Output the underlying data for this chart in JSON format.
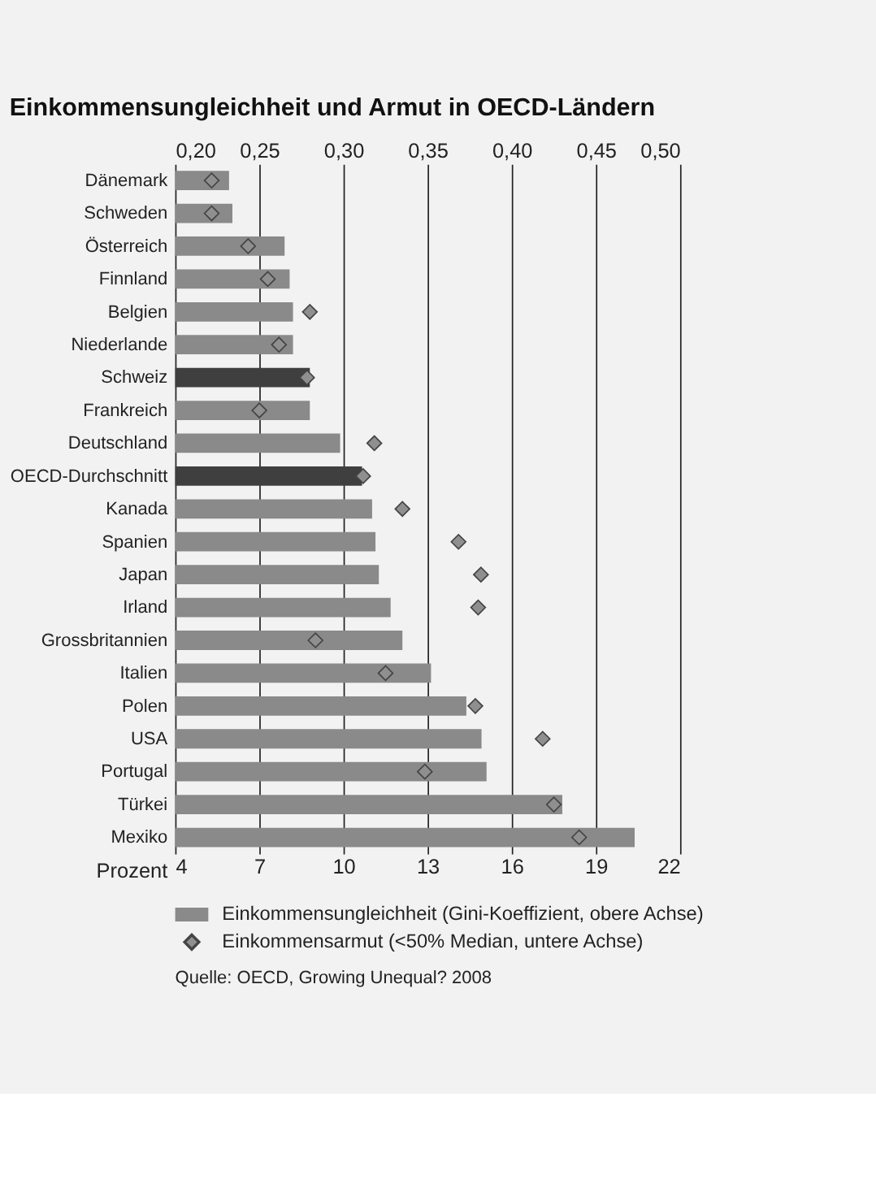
{
  "chart_data": {
    "type": "bar",
    "orientation": "horizontal",
    "title": "Einkommensungleichheit und Armut in OECD-Ländern",
    "xlabel": "Prozent",
    "categories": [
      "Dänemark",
      "Schweden",
      "Österreich",
      "Finnland",
      "Belgien",
      "Niederlande",
      "Schweiz",
      "Frankreich",
      "Deutschland",
      "OECD-Durchschnitt",
      "Kanada",
      "Spanien",
      "Japan",
      "Irland",
      "Grossbritannien",
      "Italien",
      "Polen",
      "USA",
      "Portugal",
      "Türkei",
      "Mexiko"
    ],
    "series": [
      {
        "name": "Einkommensungleichheit (Gini-Koeffizient, obere Achse)",
        "axis": "x2",
        "colors": [
          "#8a8a8a",
          "#8a8a8a",
          "#8a8a8a",
          "#8a8a8a",
          "#8a8a8a",
          "#8a8a8a",
          "#3f3f3f",
          "#8a8a8a",
          "#8a8a8a",
          "#3f3f3f",
          "#8a8a8a",
          "#8a8a8a",
          "#8a8a8a",
          "#8a8a8a",
          "#8a8a8a",
          "#8a8a8a",
          "#8a8a8a",
          "#8a8a8a",
          "#8a8a8a",
          "#8a8a8a",
          "#8a8a8a"
        ],
        "values": [
          0.232,
          0.234,
          0.265,
          0.268,
          0.27,
          0.27,
          0.28,
          0.28,
          0.298,
          0.311,
          0.317,
          0.319,
          0.321,
          0.328,
          0.335,
          0.352,
          0.373,
          0.382,
          0.385,
          0.43,
          0.473
        ]
      },
      {
        "name": "Einkommensarmut (<50% Median, untere Achse)",
        "type": "scatter",
        "color": "#8f8f8f",
        "values": [
          5.3,
          5.3,
          6.6,
          7.3,
          8.8,
          7.7,
          8.7,
          7.0,
          11.1,
          10.7,
          12.1,
          14.1,
          14.9,
          14.8,
          9.0,
          11.5,
          14.7,
          17.1,
          12.9,
          17.5,
          18.4
        ]
      }
    ],
    "xlim": [
      4,
      22
    ],
    "xticks": [
      4,
      7,
      10,
      13,
      16,
      19,
      22
    ],
    "x2lim": [
      0.2,
      0.5
    ],
    "x2ticks": [
      {
        "value": 0.2,
        "label": "0,20"
      },
      {
        "value": 0.25,
        "label": "0,25"
      },
      {
        "value": 0.3,
        "label": "0,30"
      },
      {
        "value": 0.35,
        "label": "0,35"
      },
      {
        "value": 0.4,
        "label": "0,40"
      },
      {
        "value": 0.45,
        "label": "0,45"
      },
      {
        "value": 0.5,
        "label": "0,50"
      }
    ],
    "grid": "x",
    "legend": "bottom",
    "marker": "diamond",
    "annotations": [
      "Quelle: OECD, Growing Unequal? 2008"
    ]
  }
}
